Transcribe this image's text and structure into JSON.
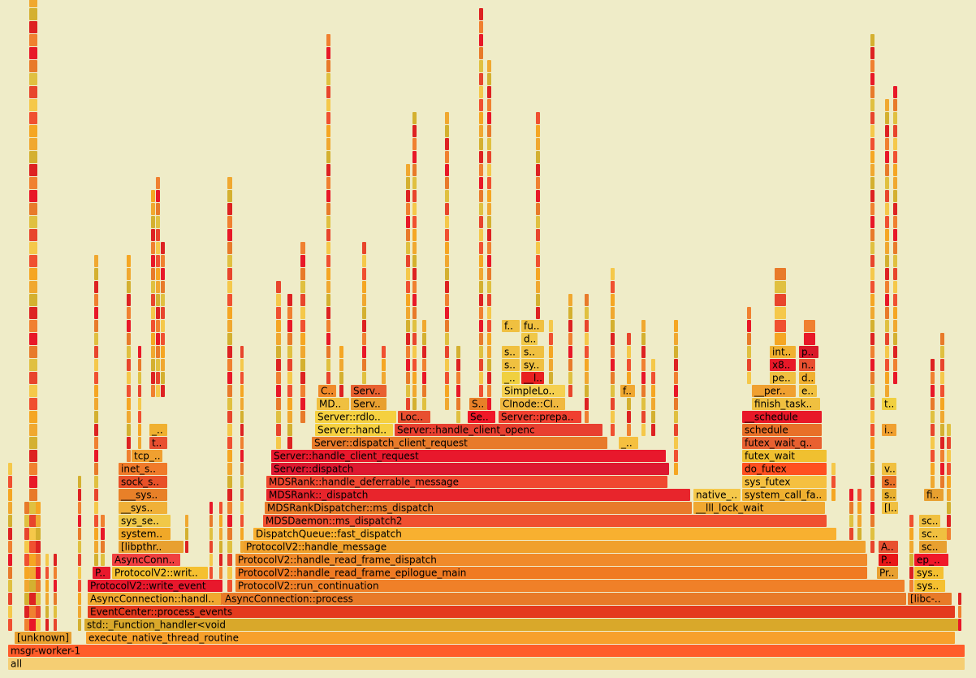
{
  "frames": [
    {
      "label": "all"
    },
    {
      "label": "msgr-worker-1"
    },
    {
      "label": "[unknown]"
    },
    {
      "label": "execute_native_thread_routine"
    },
    {
      "label": "std::_Function_handler<void"
    },
    {
      "label": "EventCenter::process_events"
    },
    {
      "label": "AsyncConnection::handl.."
    },
    {
      "label": "AsyncConnection::process"
    },
    {
      "label": "[libc-.."
    },
    {
      "label": "ProtocolV2::write_event"
    },
    {
      "label": "ProtocolV2::run_continuation"
    },
    {
      "label": "sys.."
    },
    {
      "label": "P.."
    },
    {
      "label": "ProtocolV2::writ.."
    },
    {
      "label": "ProtocolV2::handle_read_frame_epilogue_main"
    },
    {
      "label": "Pr.."
    },
    {
      "label": "sys.."
    },
    {
      "label": "AsyncConn.."
    },
    {
      "label": "ProtocolV2::handle_read_frame_dispatch"
    },
    {
      "label": "P.."
    },
    {
      "label": "ep_.."
    },
    {
      "label": "[libpthr.."
    },
    {
      "label": "ProtocolV2::handle_message"
    },
    {
      "label": "A.."
    },
    {
      "label": "sc.."
    },
    {
      "label": "system.."
    },
    {
      "label": "DispatchQueue::fast_dispatch"
    },
    {
      "label": "sc.."
    },
    {
      "label": "sys_se.."
    },
    {
      "label": "MDSDaemon::ms_dispatch2"
    },
    {
      "label": "sc.."
    },
    {
      "label": "__sys.."
    },
    {
      "label": "MDSRankDispatcher::ms_dispatch"
    },
    {
      "label": "__lll_lock_wait"
    },
    {
      "label": "[l.."
    },
    {
      "label": "___sys.."
    },
    {
      "label": "MDSRank::_dispatch"
    },
    {
      "label": "native_.."
    },
    {
      "label": "system_call_fa.."
    },
    {
      "label": "s.."
    },
    {
      "label": "fi.."
    },
    {
      "label": "sock_s.."
    },
    {
      "label": "MDSRank::handle_deferrable_message"
    },
    {
      "label": "sys_futex"
    },
    {
      "label": "s.."
    },
    {
      "label": "inet_s.."
    },
    {
      "label": "Server::dispatch"
    },
    {
      "label": "do_futex"
    },
    {
      "label": "v.."
    },
    {
      "label": "tcp_.."
    },
    {
      "label": "Server::handle_client_request"
    },
    {
      "label": "futex_wait"
    },
    {
      "label": "t.."
    },
    {
      "label": "Server::dispatch_client_request"
    },
    {
      "label": "_.."
    },
    {
      "label": "futex_wait_q.."
    },
    {
      "label": "_.."
    },
    {
      "label": "Server::hand.."
    },
    {
      "label": "Server::handle_client_openc"
    },
    {
      "label": "schedule"
    },
    {
      "label": "i.."
    },
    {
      "label": "Server::rdlo.."
    },
    {
      "label": "Loc.."
    },
    {
      "label": "Se.."
    },
    {
      "label": "Server::prepa.."
    },
    {
      "label": "__schedule"
    },
    {
      "label": "MD.."
    },
    {
      "label": "Serv.."
    },
    {
      "label": "S.."
    },
    {
      "label": "CInode::CI.."
    },
    {
      "label": "finish_task.."
    },
    {
      "label": "t.."
    },
    {
      "label": "C.."
    },
    {
      "label": "Serv.."
    },
    {
      "label": "SimpleLo.."
    },
    {
      "label": "f.."
    },
    {
      "label": "__per.."
    },
    {
      "label": "e.."
    },
    {
      "label": "_.."
    },
    {
      "label": "__l.."
    },
    {
      "label": "pe.."
    },
    {
      "label": "d.."
    },
    {
      "label": "s.."
    },
    {
      "label": "sy.."
    },
    {
      "label": "x8.."
    },
    {
      "label": "n.."
    },
    {
      "label": "s.."
    },
    {
      "label": "s.."
    },
    {
      "label": "int.."
    },
    {
      "label": "p.."
    },
    {
      "label": "d.."
    },
    {
      "label": "f.."
    },
    {
      "label": "fu.."
    }
  ]
}
